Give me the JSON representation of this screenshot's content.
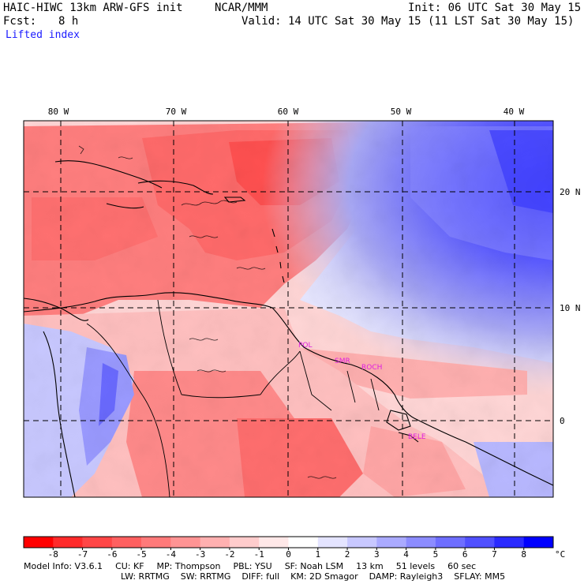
{
  "header": {
    "model": "HAIC-HIWC 13km ARW-GFS init",
    "org": "NCAR/MMM",
    "init": "Init: 06 UTC Sat 30 May 15",
    "fcst_label": "Fcst:",
    "fcst_value": "8 h",
    "valid": "Valid: 14 UTC Sat 30 May 15 (11 LST Sat 30 May 15)",
    "field": "Lifted index"
  },
  "map": {
    "lon_labels": [
      "80 W",
      "70 W",
      "60 W",
      "50 W",
      "40 W"
    ],
    "lat_labels": [
      "20 N",
      "10 N",
      "0"
    ],
    "stations": [
      "POL",
      "SMR",
      "ROCH",
      "BELE"
    ],
    "station_color": "#e020e0"
  },
  "colorbar": {
    "ticks": [
      "-8",
      "-7",
      "-6",
      "-5",
      "-4",
      "-3",
      "-2",
      "-1",
      "0",
      "1",
      "2",
      "3",
      "4",
      "5",
      "6",
      "7",
      "8"
    ],
    "unit": "°C",
    "colors": [
      "#ff0000",
      "#ff2a2a",
      "#ff4646",
      "#ff6060",
      "#ff7a7a",
      "#ff9494",
      "#ffb0b0",
      "#ffcccc",
      "#ffe8e8",
      "#ffffff",
      "#e4e4ff",
      "#c8c8ff",
      "#aaaaff",
      "#8c8cff",
      "#6e6eff",
      "#5050ff",
      "#2a2aff",
      "#0000ff"
    ]
  },
  "footer": {
    "line1": [
      {
        "label": "Model Info: V3.6.1"
      },
      {
        "label": "CU: KF"
      },
      {
        "label": "MP: Thompson"
      },
      {
        "label": "PBL: YSU"
      },
      {
        "label": "SF: Noah LSM"
      },
      {
        "label": "13 km"
      },
      {
        "label": "51 levels"
      },
      {
        "label": "60 sec"
      }
    ],
    "line2": [
      {
        "label": "LW: RRTMG"
      },
      {
        "label": "SW: RRTMG"
      },
      {
        "label": "DIFF: full"
      },
      {
        "label": "KM: 2D Smagor"
      },
      {
        "label": "DAMP: Rayleigh3"
      },
      {
        "label": "SFLAY: MM5"
      }
    ]
  }
}
